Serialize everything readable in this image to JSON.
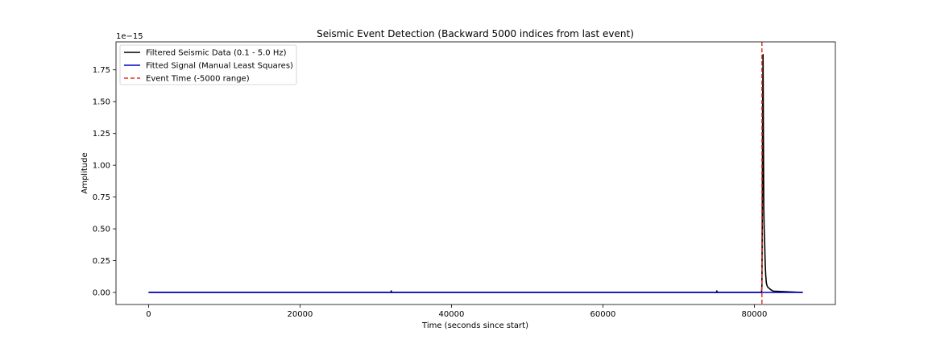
{
  "chart_data": {
    "type": "line",
    "title": "Seismic Event Detection (Backward 5000 indices from last event)",
    "xlabel": "Time (seconds since start)",
    "ylabel": "Amplitude",
    "y_offset_text": "1e−15",
    "xlim": [
      -4300,
      90700
    ],
    "ylim": [
      -0.095,
      1.97
    ],
    "x_ticks": [
      0,
      20000,
      40000,
      60000,
      80000
    ],
    "x_tick_labels": [
      "0",
      "20000",
      "40000",
      "60000",
      "80000"
    ],
    "y_ticks": [
      0.0,
      0.25,
      0.5,
      0.75,
      1.0,
      1.25,
      1.5,
      1.75
    ],
    "y_tick_labels": [
      "0.00",
      "0.25",
      "0.50",
      "0.75",
      "1.00",
      "1.25",
      "1.50",
      "1.75"
    ],
    "grid": false,
    "legend_position": "top-left",
    "series": [
      {
        "name": "Filtered Seismic Data (0.1 - 5.0 Hz)",
        "color": "#000000",
        "style": "solid",
        "x": [
          0,
          32000,
          32050,
          32100,
          75000,
          75050,
          75100,
          80950,
          81000,
          81050,
          81100,
          81150,
          81200,
          81250,
          81300,
          81350,
          81400,
          81450,
          81500,
          81550,
          81600,
          81700,
          81800,
          82000,
          82200,
          82500,
          86400
        ],
        "y": [
          0.0,
          0.0,
          0.012,
          0.0,
          0.0,
          0.012,
          0.0,
          0.0,
          0.05,
          0.6,
          1.5,
          1.87,
          1.2,
          0.66,
          0.5,
          0.43,
          0.3,
          0.2,
          0.14,
          0.1,
          0.07,
          0.05,
          0.04,
          0.03,
          0.02,
          0.01,
          0.0
        ]
      },
      {
        "name": "Fitted Signal (Manual Least Squares)",
        "color": "#0000cc",
        "style": "solid",
        "x": [
          0,
          86400
        ],
        "y": [
          0.0,
          0.0
        ]
      },
      {
        "name": "Event Time (-5000 range)",
        "color": "#e8332a",
        "style": "dashed",
        "vline_x": 81000
      }
    ]
  }
}
